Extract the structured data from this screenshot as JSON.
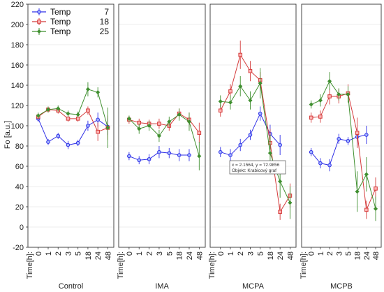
{
  "chart_data": {
    "type": "line",
    "ylabel": "Fo [a.u.]",
    "ylim": [
      -20,
      220
    ],
    "yticks": [
      -20,
      0,
      20,
      40,
      60,
      80,
      100,
      120,
      140,
      160,
      180,
      200,
      220
    ],
    "xtick_title": "Time[h]:",
    "categories": [
      "0",
      "1",
      "2",
      "3",
      "5",
      "18",
      "24",
      "48"
    ],
    "grid": true,
    "legend_position": "top-left",
    "legend": [
      {
        "name": "Temp",
        "value": "7",
        "color": "#2e2ee6"
      },
      {
        "name": "Temp",
        "value": "18",
        "color": "#d43b3b"
      },
      {
        "name": "Temp",
        "value": "25",
        "color": "#3f8f2f"
      }
    ],
    "panels": [
      {
        "label": "Control",
        "series": [
          {
            "name": "Temp 7",
            "values": [
              107,
              84,
              90,
              81,
              83,
              100,
              106,
              99
            ],
            "errors": [
              3,
              3,
              3,
              4,
              3,
              5,
              7,
              8
            ]
          },
          {
            "name": "Temp 18",
            "values": [
              109,
              116,
              115,
              107,
              107,
              115,
              94,
              98
            ],
            "errors": [
              3,
              3,
              3,
              3,
              3,
              4,
              9,
              12
            ]
          },
          {
            "name": "Temp 25",
            "values": [
              110,
              116,
              117,
              112,
              111,
              136,
              133,
              98
            ],
            "errors": [
              3,
              3,
              3,
              3,
              3,
              7,
              5,
              20
            ]
          }
        ]
      },
      {
        "label": "IMA",
        "series": [
          {
            "name": "Temp 7",
            "values": [
              70,
              66,
              67,
              74,
              73,
              71,
              71
            ],
            "errors": [
              4,
              4,
              5,
              6,
              5,
              6,
              6
            ]
          },
          {
            "name": "Temp 18",
            "values": [
              106,
              103,
              102,
              102,
              100,
              112,
              106,
              93
            ],
            "errors": [
              4,
              4,
              4,
              5,
              5,
              5,
              7,
              10
            ]
          },
          {
            "name": "Temp 25",
            "values": [
              107,
              97,
              100,
              90,
              104,
              111,
              104,
              70
            ],
            "errors": [
              3,
              5,
              5,
              6,
              5,
              6,
              9,
              14
            ]
          }
        ]
      },
      {
        "label": "MCPA",
        "series": [
          {
            "name": "Temp 7",
            "values": [
              74,
              71,
              81,
              91,
              112,
              92,
              81
            ],
            "errors": [
              5,
              6,
              6,
              5,
              7,
              9,
              10
            ]
          },
          {
            "name": "Temp 18",
            "values": [
              115,
              134,
              170,
              154,
              145,
              83,
              15,
              31
            ],
            "errors": [
              6,
              7,
              14,
              10,
              8,
              14,
              8,
              12
            ]
          },
          {
            "name": "Temp 25",
            "values": [
              124,
              123,
              139,
              125,
              142,
              73,
              45,
              24
            ],
            "errors": [
              6,
              7,
              10,
              9,
              15,
              18,
              16,
              16
            ]
          }
        ]
      },
      {
        "label": "MCPB",
        "series": [
          {
            "name": "Temp 7",
            "values": [
              74,
              63,
              61,
              87,
              85,
              89,
              91
            ],
            "errors": [
              4,
              5,
              6,
              5,
              4,
              8,
              9
            ]
          },
          {
            "name": "Temp 18",
            "values": [
              108,
              109,
              129,
              129,
              132,
              93,
              17,
              38
            ],
            "errors": [
              5,
              6,
              8,
              7,
              9,
              15,
              9,
              11
            ]
          },
          {
            "name": "Temp 25",
            "values": [
              121,
              125,
              144,
              131,
              131,
              35,
              52,
              18
            ],
            "errors": [
              4,
              6,
              9,
              6,
              8,
              20,
              17,
              12
            ]
          }
        ]
      }
    ],
    "annotation": {
      "panel": "MCPA",
      "lines": [
        "x = 2.1564, y = 72.9856",
        "Objekt: Krabicový graf"
      ]
    }
  }
}
